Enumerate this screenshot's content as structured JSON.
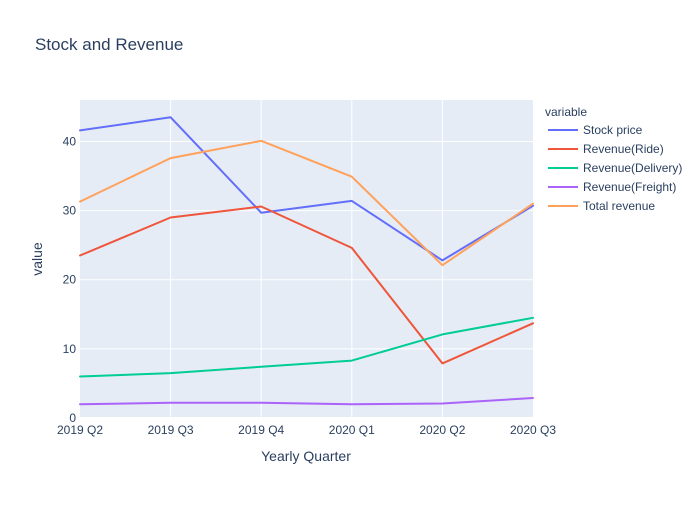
{
  "chart_data": {
    "type": "line",
    "title": "Stock and Revenue",
    "xlabel": "Yearly Quarter",
    "ylabel": "value",
    "categories": [
      "2019 Q2",
      "2019 Q3",
      "2019 Q4",
      "2020 Q1",
      "2020 Q2",
      "2020 Q3"
    ],
    "ylim": [
      0,
      46
    ],
    "yticks": [
      0,
      10,
      20,
      30,
      40
    ],
    "grid": true,
    "legend": {
      "title": "variable",
      "placement": "right"
    },
    "series": [
      {
        "name": "Stock price",
        "color": "#636efa",
        "values": [
          41.6,
          43.5,
          29.7,
          31.4,
          22.8,
          30.7
        ]
      },
      {
        "name": "Revenue(Ride)",
        "color": "#ef553b",
        "values": [
          23.5,
          29.0,
          30.6,
          24.6,
          7.9,
          13.7
        ]
      },
      {
        "name": "Revenue(Delivery)",
        "color": "#00cc96",
        "values": [
          6.0,
          6.5,
          7.4,
          8.3,
          12.1,
          14.5
        ]
      },
      {
        "name": "Revenue(Freight)",
        "color": "#ab63fa",
        "values": [
          2.0,
          2.2,
          2.2,
          2.0,
          2.1,
          2.9
        ]
      },
      {
        "name": "Total revenue",
        "color": "#ffa15a",
        "values": [
          31.3,
          37.6,
          40.1,
          34.9,
          22.1,
          31.0
        ]
      }
    ]
  }
}
